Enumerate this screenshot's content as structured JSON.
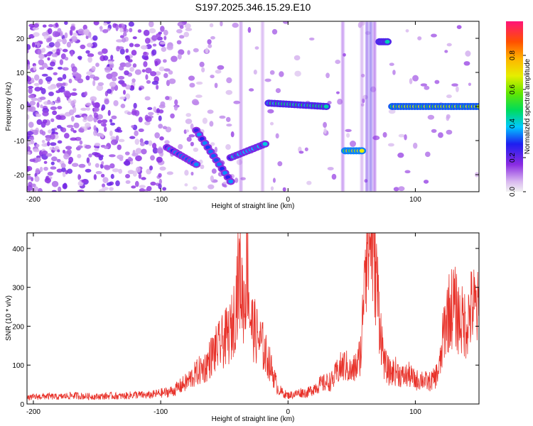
{
  "title": "S197.2025.346.15.29.E10",
  "colors": {
    "snr_line": "#e8322a",
    "frame": "#000000"
  },
  "chart_data": [
    {
      "type": "heatmap",
      "xlabel": "Height of straight line (km)",
      "ylabel": "Frequency (Hz)",
      "xlim": [
        -205,
        150
      ],
      "ylim": [
        -25,
        25
      ],
      "xticks": [
        -200,
        -100,
        0,
        100
      ],
      "xtick_labels": [
        "-200",
        "-100",
        "0",
        "100"
      ],
      "yticks": [
        -20,
        -10,
        0,
        10,
        20
      ],
      "ytick_labels": [
        "-20",
        "-10",
        "0",
        "10",
        "20"
      ],
      "colorbar": {
        "label": "Normalized spectral amplitude",
        "range": [
          0,
          1
        ],
        "ticks": [
          0.0,
          0.2,
          0.4,
          0.6,
          0.8
        ],
        "tick_labels": [
          "0.0",
          "0.2",
          "0.4",
          "0.6",
          "0.8"
        ]
      },
      "features": [
        {
          "x": [
            -95,
            -72
          ],
          "y": [
            -12,
            -17
          ],
          "level": 0.35
        },
        {
          "x": [
            -72,
            -45
          ],
          "y": [
            -7,
            -22
          ],
          "level": 0.35
        },
        {
          "x": [
            -45,
            -18
          ],
          "y": [
            -15,
            -11
          ],
          "level": 0.4
        },
        {
          "x": [
            -15,
            30
          ],
          "y": [
            1,
            0
          ],
          "level": 0.5
        },
        {
          "x": [
            45,
            58
          ],
          "y": [
            -13,
            -13
          ],
          "level": 0.75
        },
        {
          "x": [
            72,
            78
          ],
          "y": [
            19,
            19
          ],
          "level": 0.5
        },
        {
          "x": [
            82,
            150
          ],
          "y": [
            0,
            0
          ],
          "level": 0.7
        }
      ]
    },
    {
      "type": "line",
      "xlabel": "Height of straight line (km)",
      "ylabel": "SNR (10 * v/v)",
      "xlim": [
        -205,
        150
      ],
      "ylim": [
        0,
        440
      ],
      "xticks": [
        -200,
        -100,
        0,
        100
      ],
      "xtick_labels": [
        "-200",
        "-100",
        "0",
        "100"
      ],
      "yticks": [
        0,
        100,
        200,
        300,
        400
      ],
      "ytick_labels": [
        "0",
        "100",
        "200",
        "300",
        "400"
      ],
      "series": [
        {
          "x": [
            -205,
            -200,
            -190,
            -180,
            -170,
            -160,
            -150,
            -140,
            -130,
            -120,
            -110,
            -100,
            -95,
            -90,
            -85,
            -80,
            -75,
            -70,
            -65,
            -60,
            -55,
            -50,
            -45,
            -42,
            -40,
            -38,
            -36,
            -34,
            -32,
            -30,
            -28,
            -25,
            -22,
            -20,
            -18,
            -15,
            -12,
            -10,
            -8,
            -5,
            -2,
            0,
            5,
            10,
            15,
            20,
            25,
            30,
            35,
            40,
            45,
            50,
            55,
            58,
            60,
            62,
            64,
            65,
            66,
            68,
            70,
            72,
            74,
            76,
            80,
            85,
            90,
            95,
            100,
            105,
            110,
            115,
            118,
            120,
            122,
            125,
            130,
            135,
            140,
            145,
            148,
            150
          ],
          "y": [
            15,
            18,
            20,
            18,
            22,
            20,
            19,
            21,
            20,
            24,
            22,
            28,
            30,
            34,
            45,
            55,
            70,
            85,
            95,
            125,
            145,
            165,
            185,
            230,
            300,
            340,
            280,
            260,
            390,
            230,
            200,
            180,
            160,
            150,
            130,
            110,
            80,
            60,
            40,
            30,
            25,
            22,
            25,
            30,
            28,
            40,
            50,
            55,
            60,
            90,
            100,
            80,
            105,
            150,
            400,
            425,
            405,
            440,
            410,
            390,
            300,
            220,
            150,
            100,
            80,
            85,
            70,
            75,
            60,
            65,
            55,
            65,
            85,
            110,
            180,
            230,
            255,
            215,
            205,
            255,
            240,
            235
          ]
        }
      ]
    }
  ]
}
